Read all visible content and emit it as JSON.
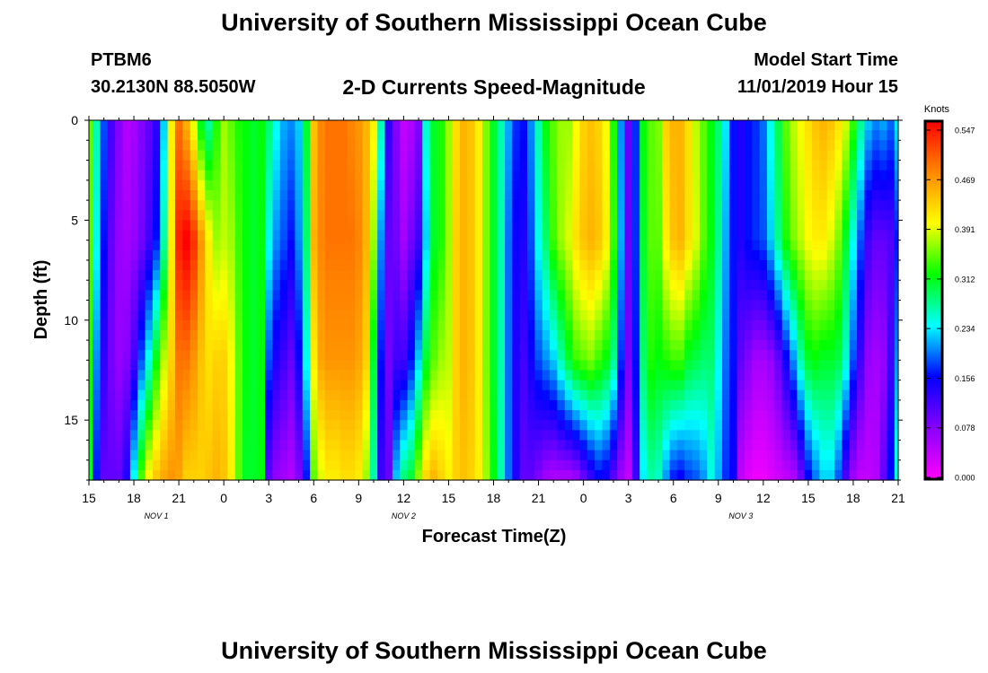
{
  "header": {
    "title": "University of Southern Mississippi Ocean Cube",
    "station_id": "PTBM6",
    "station_coords": "30.2130N 88.5050W",
    "subtitle": "2-D Currents Speed-Magnitude",
    "model_label": "Model Start Time",
    "model_time": "11/01/2019 Hour 15"
  },
  "footer": {
    "title": "University of Southern Mississippi Ocean Cube"
  },
  "chart_data": {
    "type": "heatmap",
    "title": "2-D Currents Speed-Magnitude",
    "xlabel": "Forecast Time(Z)",
    "ylabel": "Depth (ft)",
    "x_hours_range": [
      0,
      54
    ],
    "ylim": [
      0,
      18
    ],
    "x_ticks": [
      "15",
      "18",
      "21",
      "0",
      "3",
      "6",
      "9",
      "12",
      "15",
      "18",
      "21",
      "0",
      "3",
      "6",
      "9",
      "12",
      "15",
      "18",
      "21"
    ],
    "y_ticks": [
      "0",
      "5",
      "10",
      "15"
    ],
    "day_labels": [
      {
        "label": "NOV 1",
        "hour": 4.5
      },
      {
        "label": "NOV 2",
        "hour": 21
      },
      {
        "label": "NOV 3",
        "hour": 43.5
      }
    ],
    "colorbar": {
      "unit": "Knots",
      "min": 0.0,
      "max": 0.547,
      "ticks": [
        "0.547",
        "0.469",
        "0.391",
        "0.312",
        "0.234",
        "0.156",
        "0.078",
        "0.000"
      ]
    },
    "depth_levels_ft": [
      0,
      6,
      12,
      18
    ],
    "columns": [
      {
        "h": 0.0,
        "v": [
          0.34,
          0.34,
          0.32,
          0.3
        ]
      },
      {
        "h": 0.5,
        "v": [
          0.26,
          0.24,
          0.2,
          0.16
        ]
      },
      {
        "h": 1.0,
        "v": [
          0.18,
          0.16,
          0.13,
          0.1
        ]
      },
      {
        "h": 1.5,
        "v": [
          0.12,
          0.1,
          0.09,
          0.1
        ]
      },
      {
        "h": 2.0,
        "v": [
          0.08,
          0.07,
          0.07,
          0.1
        ]
      },
      {
        "h": 2.5,
        "v": [
          0.05,
          0.06,
          0.08,
          0.14
        ]
      },
      {
        "h": 3.0,
        "v": [
          0.06,
          0.07,
          0.12,
          0.24
        ]
      },
      {
        "h": 3.5,
        "v": [
          0.08,
          0.09,
          0.18,
          0.34
        ]
      },
      {
        "h": 4.0,
        "v": [
          0.1,
          0.12,
          0.24,
          0.4
        ]
      },
      {
        "h": 4.5,
        "v": [
          0.13,
          0.16,
          0.31,
          0.43
        ]
      },
      {
        "h": 5.0,
        "v": [
          0.22,
          0.26,
          0.37,
          0.45
        ]
      },
      {
        "h": 5.5,
        "v": [
          0.4,
          0.4,
          0.42,
          0.46
        ]
      },
      {
        "h": 6.0,
        "v": [
          0.48,
          0.53,
          0.48,
          0.45
        ]
      },
      {
        "h": 6.5,
        "v": [
          0.44,
          0.55,
          0.48,
          0.42
        ]
      },
      {
        "h": 7.0,
        "v": [
          0.38,
          0.52,
          0.46,
          0.42
        ]
      },
      {
        "h": 7.5,
        "v": [
          0.3,
          0.46,
          0.43,
          0.42
        ]
      },
      {
        "h": 8.0,
        "v": [
          0.26,
          0.4,
          0.41,
          0.43
        ]
      },
      {
        "h": 8.5,
        "v": [
          0.32,
          0.36,
          0.42,
          0.44
        ]
      },
      {
        "h": 9.0,
        "v": [
          0.36,
          0.37,
          0.42,
          0.43
        ]
      },
      {
        "h": 9.5,
        "v": [
          0.34,
          0.36,
          0.39,
          0.4
        ]
      },
      {
        "h": 10.0,
        "v": [
          0.32,
          0.33,
          0.34,
          0.34
        ]
      },
      {
        "h": 10.5,
        "v": [
          0.31,
          0.31,
          0.31,
          0.3
        ]
      },
      {
        "h": 11.0,
        "v": [
          0.3,
          0.3,
          0.3,
          0.3
        ]
      },
      {
        "h": 11.5,
        "v": [
          0.31,
          0.31,
          0.31,
          0.31
        ]
      },
      {
        "h": 12.0,
        "v": [
          0.28,
          0.24,
          0.18,
          0.1
        ]
      },
      {
        "h": 12.5,
        "v": [
          0.24,
          0.2,
          0.14,
          0.07
        ]
      },
      {
        "h": 13.0,
        "v": [
          0.21,
          0.18,
          0.12,
          0.06
        ]
      },
      {
        "h": 13.5,
        "v": [
          0.2,
          0.16,
          0.1,
          0.05
        ]
      },
      {
        "h": 14.0,
        "v": [
          0.22,
          0.2,
          0.15,
          0.08
        ]
      },
      {
        "h": 14.5,
        "v": [
          0.3,
          0.28,
          0.24,
          0.16
        ]
      },
      {
        "h": 15.0,
        "v": [
          0.43,
          0.44,
          0.4,
          0.34
        ]
      },
      {
        "h": 15.5,
        "v": [
          0.47,
          0.47,
          0.45,
          0.38
        ]
      },
      {
        "h": 16.0,
        "v": [
          0.48,
          0.48,
          0.46,
          0.4
        ]
      },
      {
        "h": 16.5,
        "v": [
          0.48,
          0.48,
          0.46,
          0.4
        ]
      },
      {
        "h": 17.0,
        "v": [
          0.48,
          0.48,
          0.46,
          0.41
        ]
      },
      {
        "h": 17.5,
        "v": [
          0.47,
          0.48,
          0.46,
          0.41
        ]
      },
      {
        "h": 18.0,
        "v": [
          0.46,
          0.47,
          0.45,
          0.4
        ]
      },
      {
        "h": 18.5,
        "v": [
          0.44,
          0.44,
          0.42,
          0.36
        ]
      },
      {
        "h": 19.0,
        "v": [
          0.4,
          0.36,
          0.3,
          0.26
        ]
      },
      {
        "h": 19.5,
        "v": [
          0.26,
          0.2,
          0.16,
          0.12
        ]
      },
      {
        "h": 20.0,
        "v": [
          0.13,
          0.1,
          0.09,
          0.1
        ]
      },
      {
        "h": 20.5,
        "v": [
          0.08,
          0.09,
          0.12,
          0.22
        ]
      },
      {
        "h": 21.0,
        "v": [
          0.04,
          0.06,
          0.12,
          0.28
        ]
      },
      {
        "h": 21.5,
        "v": [
          0.05,
          0.09,
          0.16,
          0.3
        ]
      },
      {
        "h": 22.0,
        "v": [
          0.08,
          0.12,
          0.22,
          0.36
        ]
      },
      {
        "h": 22.5,
        "v": [
          0.25,
          0.22,
          0.3,
          0.42
        ]
      },
      {
        "h": 23.0,
        "v": [
          0.3,
          0.3,
          0.34,
          0.44
        ]
      },
      {
        "h": 23.5,
        "v": [
          0.32,
          0.32,
          0.36,
          0.42
        ]
      },
      {
        "h": 24.0,
        "v": [
          0.36,
          0.36,
          0.37,
          0.4
        ]
      },
      {
        "h": 24.5,
        "v": [
          0.41,
          0.42,
          0.42,
          0.42
        ]
      },
      {
        "h": 25.0,
        "v": [
          0.44,
          0.44,
          0.44,
          0.43
        ]
      },
      {
        "h": 25.5,
        "v": [
          0.43,
          0.43,
          0.43,
          0.42
        ]
      },
      {
        "h": 26.0,
        "v": [
          0.4,
          0.4,
          0.4,
          0.4
        ]
      },
      {
        "h": 26.5,
        "v": [
          0.35,
          0.35,
          0.35,
          0.36
        ]
      },
      {
        "h": 27.0,
        "v": [
          0.3,
          0.3,
          0.3,
          0.31
        ]
      },
      {
        "h": 27.5,
        "v": [
          0.26,
          0.26,
          0.26,
          0.26
        ]
      },
      {
        "h": 28.0,
        "v": [
          0.21,
          0.19,
          0.19,
          0.19
        ]
      },
      {
        "h": 28.5,
        "v": [
          0.17,
          0.15,
          0.14,
          0.14
        ]
      },
      {
        "h": 29.0,
        "v": [
          0.16,
          0.14,
          0.12,
          0.1
        ]
      },
      {
        "h": 29.5,
        "v": [
          0.2,
          0.18,
          0.15,
          0.1
        ]
      },
      {
        "h": 30.0,
        "v": [
          0.26,
          0.24,
          0.18,
          0.08
        ]
      },
      {
        "h": 30.5,
        "v": [
          0.31,
          0.28,
          0.2,
          0.06
        ]
      },
      {
        "h": 31.0,
        "v": [
          0.34,
          0.33,
          0.22,
          0.05
        ]
      },
      {
        "h": 31.5,
        "v": [
          0.36,
          0.36,
          0.26,
          0.05
        ]
      },
      {
        "h": 32.0,
        "v": [
          0.36,
          0.38,
          0.3,
          0.05
        ]
      },
      {
        "h": 32.5,
        "v": [
          0.39,
          0.41,
          0.33,
          0.06
        ]
      },
      {
        "h": 33.0,
        "v": [
          0.42,
          0.43,
          0.34,
          0.09
        ]
      },
      {
        "h": 33.5,
        "v": [
          0.43,
          0.44,
          0.35,
          0.12
        ]
      },
      {
        "h": 34.0,
        "v": [
          0.42,
          0.43,
          0.33,
          0.15
        ]
      },
      {
        "h": 34.5,
        "v": [
          0.39,
          0.4,
          0.31,
          0.14
        ]
      },
      {
        "h": 35.0,
        "v": [
          0.32,
          0.33,
          0.27,
          0.1
        ]
      },
      {
        "h": 35.5,
        "v": [
          0.2,
          0.21,
          0.17,
          0.06
        ]
      },
      {
        "h": 36.0,
        "v": [
          0.1,
          0.1,
          0.09,
          0.04
        ]
      },
      {
        "h": 36.5,
        "v": [
          0.17,
          0.17,
          0.16,
          0.12
        ]
      },
      {
        "h": 37.0,
        "v": [
          0.31,
          0.3,
          0.28,
          0.23
        ]
      },
      {
        "h": 37.5,
        "v": [
          0.34,
          0.34,
          0.32,
          0.26
        ]
      },
      {
        "h": 38.0,
        "v": [
          0.35,
          0.34,
          0.31,
          0.25
        ]
      },
      {
        "h": 38.5,
        "v": [
          0.42,
          0.4,
          0.32,
          0.2
        ]
      },
      {
        "h": 39.0,
        "v": [
          0.44,
          0.43,
          0.33,
          0.16
        ]
      },
      {
        "h": 39.5,
        "v": [
          0.44,
          0.44,
          0.33,
          0.15
        ]
      },
      {
        "h": 40.0,
        "v": [
          0.41,
          0.41,
          0.3,
          0.17
        ]
      },
      {
        "h": 40.5,
        "v": [
          0.37,
          0.38,
          0.29,
          0.18
        ]
      },
      {
        "h": 41.0,
        "v": [
          0.34,
          0.34,
          0.28,
          0.2
        ]
      },
      {
        "h": 41.5,
        "v": [
          0.31,
          0.31,
          0.28,
          0.24
        ]
      },
      {
        "h": 42.0,
        "v": [
          0.28,
          0.27,
          0.24,
          0.21
        ]
      },
      {
        "h": 42.5,
        "v": [
          0.23,
          0.21,
          0.19,
          0.17
        ]
      },
      {
        "h": 43.0,
        "v": [
          0.16,
          0.16,
          0.16,
          0.15
        ]
      },
      {
        "h": 43.5,
        "v": [
          0.14,
          0.14,
          0.1,
          0.04
        ]
      },
      {
        "h": 44.0,
        "v": [
          0.16,
          0.16,
          0.08,
          0.02
        ]
      },
      {
        "h": 44.5,
        "v": [
          0.17,
          0.17,
          0.06,
          0.01
        ]
      },
      {
        "h": 45.0,
        "v": [
          0.19,
          0.18,
          0.06,
          0.01
        ]
      },
      {
        "h": 45.5,
        "v": [
          0.24,
          0.22,
          0.07,
          0.02
        ]
      },
      {
        "h": 46.0,
        "v": [
          0.29,
          0.27,
          0.1,
          0.03
        ]
      },
      {
        "h": 46.5,
        "v": [
          0.34,
          0.32,
          0.15,
          0.04
        ]
      },
      {
        "h": 47.0,
        "v": [
          0.37,
          0.35,
          0.2,
          0.05
        ]
      },
      {
        "h": 47.5,
        "v": [
          0.39,
          0.37,
          0.26,
          0.09
        ]
      },
      {
        "h": 48.0,
        "v": [
          0.41,
          0.39,
          0.3,
          0.15
        ]
      },
      {
        "h": 48.5,
        "v": [
          0.43,
          0.4,
          0.31,
          0.19
        ]
      },
      {
        "h": 49.0,
        "v": [
          0.44,
          0.4,
          0.3,
          0.22
        ]
      },
      {
        "h": 49.5,
        "v": [
          0.43,
          0.38,
          0.3,
          0.22
        ]
      },
      {
        "h": 50.0,
        "v": [
          0.41,
          0.35,
          0.29,
          0.18
        ]
      },
      {
        "h": 50.5,
        "v": [
          0.38,
          0.3,
          0.25,
          0.11
        ]
      },
      {
        "h": 51.0,
        "v": [
          0.33,
          0.24,
          0.18,
          0.06
        ]
      },
      {
        "h": 51.5,
        "v": [
          0.27,
          0.18,
          0.12,
          0.04
        ]
      },
      {
        "h": 52.0,
        "v": [
          0.22,
          0.12,
          0.07,
          0.04
        ]
      },
      {
        "h": 52.5,
        "v": [
          0.2,
          0.1,
          0.06,
          0.05
        ]
      },
      {
        "h": 53.0,
        "v": [
          0.21,
          0.1,
          0.07,
          0.1
        ]
      },
      {
        "h": 53.5,
        "v": [
          0.19,
          0.11,
          0.12,
          0.16
        ]
      },
      {
        "h": 54.0,
        "v": [
          0.23,
          0.16,
          0.2,
          0.25
        ]
      }
    ]
  }
}
